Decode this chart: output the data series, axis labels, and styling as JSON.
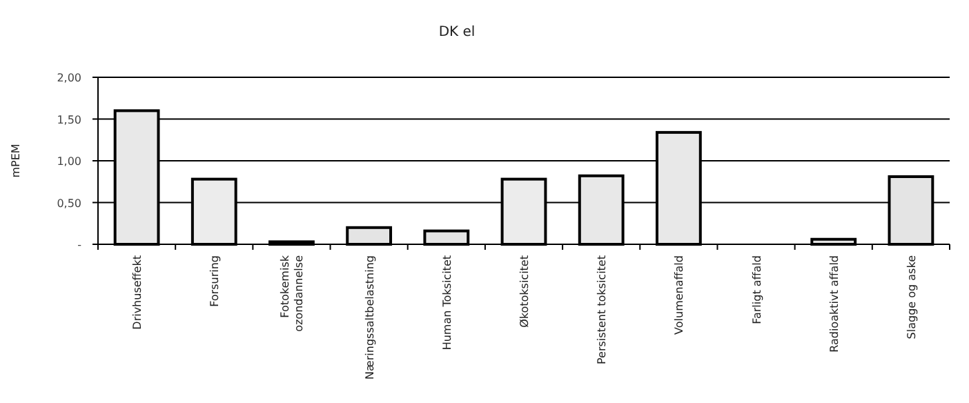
{
  "chart_data": {
    "type": "bar",
    "title": "DK el",
    "ylabel": "mPEM",
    "categories": [
      "Drivhuseffekt",
      "Forsuring",
      "Fotokemisk\nozondannelse",
      "Næringssaltbelastning",
      "Human Toksicitet",
      "Økotoksicitet",
      "Persistent toksicitet",
      "Volumenaffald",
      "Farligt affald",
      "Radioaktivt affald",
      "Slagge og aske"
    ],
    "values": [
      1.6,
      0.78,
      0.03,
      0.2,
      0.16,
      0.78,
      0.82,
      1.34,
      0,
      0.06,
      0.81
    ],
    "colors": [
      "#e8e8e8",
      "#ececec",
      "#000000",
      "#e4e4e4",
      "#e4e4e4",
      "#ececec",
      "#e8e8e8",
      "#e8e8e8",
      "#e8e8e8",
      "#e4e4e4",
      "#e4e4e4"
    ],
    "ylim": [
      0,
      2
    ],
    "yticks": [
      {
        "value": 0,
        "label": "-"
      },
      {
        "value": 0.5,
        "label": "0,50"
      },
      {
        "value": 1,
        "label": "1,00"
      },
      {
        "value": 1.5,
        "label": "1,50"
      },
      {
        "value": 2,
        "label": "2,00"
      }
    ],
    "grid": "y"
  }
}
